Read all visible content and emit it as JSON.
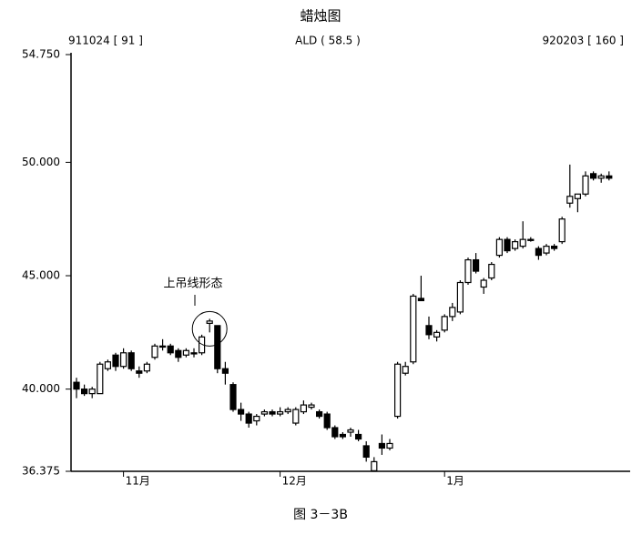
{
  "chart_data": {
    "type": "candlestick",
    "title": "蜡烛图",
    "header_left": "911024 [ 91 ]",
    "header_center": "ALD ( 58.5 )",
    "header_right": "920203 [ 160 ]",
    "annotation": "上吊线形态",
    "caption": "图 3－3B",
    "categories": [
      null,
      null,
      null,
      null,
      null,
      null,
      "11月",
      null,
      null,
      null,
      null,
      null,
      null,
      null,
      null,
      null,
      null,
      null,
      null,
      null,
      null,
      null,
      null,
      null,
      null,
      null,
      "12月",
      null,
      null,
      null,
      null,
      null,
      null,
      null,
      null,
      null,
      null,
      null,
      null,
      null,
      null,
      null,
      null,
      null,
      null,
      null,
      null,
      "1月",
      null,
      null,
      null,
      null,
      null,
      null,
      null,
      null,
      null,
      null,
      null,
      null,
      null,
      null,
      null,
      null,
      null,
      null,
      null,
      null,
      null
    ],
    "open": [
      40.3,
      40.0,
      39.8,
      39.8,
      40.9,
      41.5,
      41.0,
      41.6,
      40.8,
      40.8,
      41.4,
      41.9,
      41.9,
      41.7,
      41.5,
      41.6,
      41.6,
      42.9,
      42.8,
      40.9,
      40.2,
      39.1,
      38.9,
      38.6,
      38.9,
      39.0,
      38.9,
      39.0,
      38.5,
      39.0,
      39.2,
      39.0,
      38.9,
      38.3,
      38.0,
      38.1,
      38.0,
      37.5,
      36.4,
      37.6,
      37.4,
      38.8,
      40.7,
      41.2,
      44.0,
      42.8,
      42.3,
      42.6,
      43.2,
      43.4,
      44.7,
      45.7,
      44.5,
      44.9,
      45.9,
      46.6,
      46.2,
      46.3,
      46.6,
      46.2,
      46.0,
      46.3,
      46.5,
      48.2,
      48.4,
      48.6,
      49.5,
      49.3,
      49.4
    ],
    "high": [
      40.5,
      40.2,
      40.1,
      41.2,
      41.3,
      41.6,
      41.8,
      41.7,
      41.0,
      41.2,
      42.0,
      42.2,
      42.0,
      41.8,
      41.8,
      41.8,
      42.4,
      43.1,
      42.8,
      41.2,
      40.3,
      39.4,
      39.0,
      38.9,
      39.1,
      39.1,
      39.2,
      39.2,
      39.2,
      39.5,
      39.4,
      39.1,
      39.0,
      38.4,
      38.1,
      38.3,
      38.2,
      37.7,
      37.0,
      38.0,
      37.8,
      41.2,
      41.2,
      44.2,
      45.0,
      43.2,
      42.6,
      43.3,
      43.8,
      44.8,
      45.8,
      46.0,
      44.9,
      45.6,
      46.7,
      46.7,
      46.6,
      47.4,
      46.7,
      46.3,
      46.4,
      46.4,
      47.6,
      49.9,
      48.6,
      49.6,
      49.6,
      49.5,
      49.6
    ],
    "low": [
      39.6,
      39.7,
      39.6,
      39.8,
      40.8,
      40.8,
      40.9,
      40.8,
      40.5,
      40.7,
      41.3,
      41.7,
      41.5,
      41.2,
      41.4,
      41.4,
      41.5,
      42.5,
      40.7,
      40.2,
      39.0,
      38.6,
      38.3,
      38.4,
      38.8,
      38.8,
      38.8,
      38.9,
      38.4,
      38.9,
      39.1,
      38.7,
      38.2,
      37.8,
      37.8,
      37.9,
      37.7,
      36.8,
      36.375,
      37.1,
      37.3,
      38.7,
      40.6,
      41.1,
      43.9,
      42.2,
      42.1,
      42.5,
      43.0,
      43.3,
      44.6,
      45.1,
      44.2,
      44.8,
      45.8,
      46.0,
      46.1,
      46.2,
      46.5,
      45.7,
      45.9,
      46.1,
      46.4,
      48.0,
      47.8,
      48.5,
      49.2,
      49.1,
      49.2
    ],
    "close": [
      40.0,
      39.8,
      40.0,
      41.1,
      41.2,
      41.0,
      41.6,
      40.9,
      40.7,
      41.1,
      41.9,
      41.9,
      41.6,
      41.4,
      41.7,
      41.6,
      42.3,
      43.0,
      40.9,
      40.7,
      39.1,
      38.9,
      38.5,
      38.8,
      39.0,
      38.9,
      39.0,
      39.1,
      39.1,
      39.3,
      39.3,
      38.8,
      38.3,
      37.9,
      37.9,
      38.2,
      37.8,
      37.0,
      36.8,
      37.4,
      37.6,
      41.1,
      41.0,
      44.1,
      43.9,
      42.4,
      42.5,
      43.2,
      43.6,
      44.7,
      45.7,
      45.2,
      44.8,
      45.5,
      46.6,
      46.1,
      46.5,
      46.6,
      46.6,
      45.9,
      46.3,
      46.2,
      47.5,
      48.5,
      48.6,
      49.4,
      49.3,
      49.4,
      49.3
    ],
    "ylim": [
      36.375,
      54.75
    ],
    "yticks": [
      {
        "value": 36.375,
        "label": "36.375"
      },
      {
        "value": 40,
        "label": "40.000"
      },
      {
        "value": 45,
        "label": "45.000"
      },
      {
        "value": 50,
        "label": "50.000"
      },
      {
        "value": 54.75,
        "label": "54.750"
      }
    ],
    "color": "#000000"
  }
}
